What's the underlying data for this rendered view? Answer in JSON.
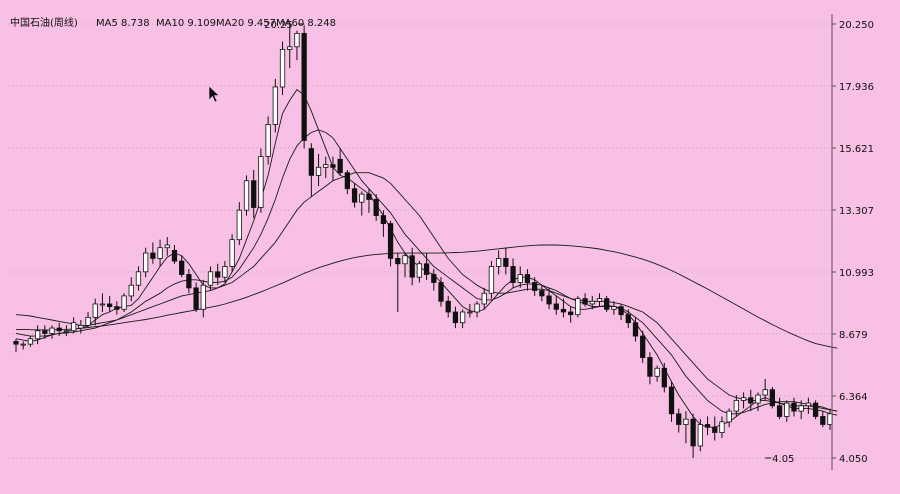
{
  "title": "中国石油(周线)",
  "chart_data": {
    "type": "candlestick",
    "title": "中国石油(周线)",
    "legend": [
      {
        "label": "MA5",
        "value": "8.738"
      },
      {
        "label": "MA10",
        "value": "9.109"
      },
      {
        "label": "MA20",
        "value": "9.457"
      },
      {
        "label": "MA60",
        "value": "8.248"
      }
    ],
    "y_ticks": [
      "20.250",
      "17.936",
      "15.621",
      "13.307",
      "10.993",
      "8.679",
      "6.364",
      "4.050"
    ],
    "ylim": [
      4.05,
      20.25
    ],
    "grid": true,
    "annotations": [
      {
        "label": "20.25",
        "x_index": 40,
        "value": 20.25
      },
      {
        "label": "4.05",
        "x_index": 104,
        "value": 4.05
      }
    ],
    "candles": [
      [
        8.4,
        8.5,
        8.0,
        8.3
      ],
      [
        8.3,
        8.4,
        8.1,
        8.3
      ],
      [
        8.3,
        8.6,
        8.2,
        8.5
      ],
      [
        8.5,
        9.0,
        8.3,
        8.8
      ],
      [
        8.8,
        9.0,
        8.5,
        8.7
      ],
      [
        8.7,
        9.0,
        8.5,
        8.9
      ],
      [
        8.9,
        9.1,
        8.6,
        8.8
      ],
      [
        8.8,
        9.0,
        8.6,
        8.8
      ],
      [
        8.8,
        9.3,
        8.7,
        9.1
      ],
      [
        8.9,
        9.2,
        8.7,
        9.0
      ],
      [
        9.0,
        9.5,
        8.9,
        9.3
      ],
      [
        9.3,
        10.0,
        9.0,
        9.8
      ],
      [
        9.8,
        10.2,
        9.5,
        9.8
      ],
      [
        9.8,
        10.1,
        9.5,
        9.7
      ],
      [
        9.7,
        9.9,
        9.4,
        9.6
      ],
      [
        9.6,
        10.2,
        9.5,
        10.1
      ],
      [
        10.1,
        10.8,
        9.9,
        10.5
      ],
      [
        10.5,
        11.2,
        10.3,
        11.0
      ],
      [
        11.0,
        11.9,
        10.8,
        11.7
      ],
      [
        11.7,
        12.1,
        11.3,
        11.5
      ],
      [
        11.5,
        12.2,
        11.2,
        11.9
      ],
      [
        11.9,
        12.3,
        11.6,
        12.0
      ],
      [
        11.8,
        12.0,
        11.3,
        11.4
      ],
      [
        11.4,
        11.6,
        10.8,
        10.9
      ],
      [
        10.9,
        11.1,
        10.2,
        10.4
      ],
      [
        10.4,
        10.6,
        9.5,
        9.6
      ],
      [
        9.6,
        10.7,
        9.3,
        10.5
      ],
      [
        10.5,
        11.2,
        10.3,
        11.0
      ],
      [
        11.0,
        11.3,
        10.5,
        10.8
      ],
      [
        10.8,
        11.4,
        10.6,
        11.2
      ],
      [
        11.2,
        12.4,
        11.0,
        12.2
      ],
      [
        12.2,
        13.6,
        12.0,
        13.3
      ],
      [
        13.3,
        14.6,
        13.1,
        14.4
      ],
      [
        14.4,
        14.8,
        13.0,
        13.4
      ],
      [
        13.4,
        15.6,
        13.2,
        15.3
      ],
      [
        15.3,
        16.8,
        15.0,
        16.5
      ],
      [
        16.5,
        18.2,
        16.2,
        17.9
      ],
      [
        17.9,
        19.6,
        17.6,
        19.3
      ],
      [
        19.3,
        20.25,
        18.6,
        19.4
      ],
      [
        19.4,
        20.0,
        18.9,
        19.9
      ],
      [
        19.9,
        20.2,
        15.6,
        15.9
      ],
      [
        15.6,
        15.8,
        13.8,
        14.6
      ],
      [
        14.6,
        15.4,
        14.2,
        14.9
      ],
      [
        14.9,
        15.3,
        14.5,
        15.0
      ],
      [
        15.0,
        15.3,
        14.4,
        14.9
      ],
      [
        15.2,
        15.6,
        14.6,
        14.7
      ],
      [
        14.7,
        14.8,
        13.9,
        14.1
      ],
      [
        14.1,
        14.3,
        13.4,
        13.6
      ],
      [
        13.6,
        14.0,
        13.1,
        13.9
      ],
      [
        13.9,
        14.1,
        13.2,
        13.7
      ],
      [
        13.7,
        13.9,
        12.9,
        13.1
      ],
      [
        13.1,
        13.3,
        12.3,
        12.8
      ],
      [
        12.8,
        12.9,
        11.2,
        11.5
      ],
      [
        11.5,
        11.7,
        9.5,
        11.3
      ],
      [
        11.3,
        11.7,
        10.8,
        11.6
      ],
      [
        11.6,
        11.9,
        10.5,
        10.8
      ],
      [
        10.8,
        11.4,
        10.6,
        11.3
      ],
      [
        11.3,
        11.7,
        10.7,
        10.9
      ],
      [
        10.9,
        11.1,
        10.3,
        10.6
      ],
      [
        10.6,
        10.8,
        9.7,
        9.9
      ],
      [
        9.9,
        10.1,
        9.3,
        9.5
      ],
      [
        9.5,
        9.7,
        8.9,
        9.1
      ],
      [
        9.1,
        9.6,
        8.9,
        9.5
      ],
      [
        9.5,
        9.8,
        9.3,
        9.5
      ],
      [
        9.5,
        9.9,
        9.3,
        9.8
      ],
      [
        9.8,
        10.4,
        9.6,
        10.2
      ],
      [
        10.2,
        11.4,
        10.0,
        11.2
      ],
      [
        11.2,
        11.8,
        10.9,
        11.5
      ],
      [
        11.5,
        11.9,
        10.9,
        11.2
      ],
      [
        11.2,
        11.5,
        10.4,
        10.6
      ],
      [
        10.6,
        11.2,
        10.4,
        10.9
      ],
      [
        10.9,
        11.1,
        10.3,
        10.6
      ],
      [
        10.6,
        10.8,
        10.1,
        10.3
      ],
      [
        10.3,
        10.5,
        9.9,
        10.1
      ],
      [
        10.1,
        10.4,
        9.6,
        9.8
      ],
      [
        9.8,
        10.1,
        9.4,
        9.6
      ],
      [
        9.6,
        10.0,
        9.3,
        9.5
      ],
      [
        9.5,
        9.7,
        9.1,
        9.4
      ],
      [
        9.4,
        10.1,
        9.3,
        10.0
      ],
      [
        10.0,
        10.2,
        9.7,
        9.8
      ],
      [
        9.8,
        10.1,
        9.6,
        9.9
      ],
      [
        9.9,
        10.2,
        9.7,
        10.0
      ],
      [
        10.0,
        10.1,
        9.5,
        9.6
      ],
      [
        9.6,
        9.9,
        9.4,
        9.7
      ],
      [
        9.7,
        9.8,
        9.2,
        9.4
      ],
      [
        9.4,
        9.6,
        8.9,
        9.1
      ],
      [
        9.1,
        9.3,
        8.4,
        8.6
      ],
      [
        8.6,
        8.8,
        7.6,
        7.8
      ],
      [
        7.8,
        8.0,
        6.8,
        7.1
      ],
      [
        7.1,
        7.5,
        6.9,
        7.4
      ],
      [
        7.4,
        7.6,
        6.5,
        6.7
      ],
      [
        6.7,
        6.9,
        5.4,
        5.7
      ],
      [
        5.7,
        5.9,
        5.0,
        5.3
      ],
      [
        5.3,
        5.8,
        4.6,
        5.5
      ],
      [
        5.5,
        5.7,
        4.05,
        4.5
      ],
      [
        4.5,
        5.5,
        4.3,
        5.3
      ],
      [
        5.3,
        5.6,
        4.9,
        5.2
      ],
      [
        5.2,
        5.6,
        4.7,
        5.0
      ],
      [
        5.0,
        5.6,
        4.8,
        5.4
      ],
      [
        5.4,
        5.9,
        5.2,
        5.8
      ],
      [
        5.8,
        6.4,
        5.6,
        6.2
      ],
      [
        6.2,
        6.5,
        5.9,
        6.3
      ],
      [
        6.3,
        6.6,
        5.8,
        6.1
      ],
      [
        6.1,
        6.5,
        5.8,
        6.4
      ],
      [
        6.4,
        7.0,
        6.2,
        6.6
      ],
      [
        6.6,
        6.7,
        5.9,
        6.0
      ],
      [
        6.0,
        6.3,
        5.5,
        5.6
      ],
      [
        5.6,
        6.2,
        5.4,
        6.1
      ],
      [
        6.1,
        6.3,
        5.6,
        5.8
      ],
      [
        5.8,
        6.2,
        5.5,
        6.0
      ],
      [
        6.0,
        6.3,
        5.7,
        6.1
      ],
      [
        6.1,
        6.2,
        5.5,
        5.6
      ],
      [
        5.6,
        5.8,
        5.2,
        5.3
      ],
      [
        5.3,
        5.9,
        5.1,
        5.7
      ]
    ],
    "series": [
      {
        "name": "MA5",
        "label_value": "8.738",
        "values": [
          8.5,
          8.45,
          8.4,
          8.45,
          8.55,
          8.65,
          8.7,
          8.75,
          8.85,
          8.9,
          8.98,
          9.2,
          9.4,
          9.5,
          9.65,
          9.7,
          9.75,
          10.0,
          10.4,
          10.8,
          11.2,
          11.55,
          11.7,
          11.6,
          11.3,
          10.9,
          10.5,
          10.4,
          10.4,
          10.55,
          11.0,
          11.5,
          12.2,
          12.9,
          13.7,
          14.6,
          15.8,
          16.9,
          17.4,
          17.8,
          17.6,
          17.0,
          16.3,
          15.6,
          14.9,
          14.6,
          14.5,
          14.3,
          14.1,
          13.9,
          13.5,
          13.1,
          12.6,
          12.1,
          11.7,
          11.4,
          11.2,
          11.0,
          10.9,
          10.6,
          10.3,
          10.0,
          9.7,
          9.55,
          9.5,
          9.6,
          9.9,
          10.2,
          10.5,
          10.7,
          10.8,
          10.8,
          10.7,
          10.5,
          10.3,
          10.1,
          9.9,
          9.7,
          9.6,
          9.6,
          9.65,
          9.7,
          9.75,
          9.7,
          9.6,
          9.4,
          9.1,
          8.7,
          8.3,
          7.9,
          7.4,
          6.9,
          6.4,
          6.0,
          5.6,
          5.3,
          5.2,
          5.2,
          5.3,
          5.4,
          5.6,
          5.8,
          6.0,
          6.2,
          6.3,
          6.2,
          6.1,
          6.0,
          5.9,
          5.9,
          5.9,
          5.85,
          5.8,
          5.7,
          5.65
        ]
      },
      {
        "name": "MA10",
        "label_value": "9.109",
        "values": [
          8.7,
          8.65,
          8.6,
          8.6,
          8.6,
          8.65,
          8.7,
          8.72,
          8.75,
          8.8,
          8.85,
          8.9,
          9.0,
          9.1,
          9.2,
          9.35,
          9.5,
          9.7,
          9.9,
          10.05,
          10.2,
          10.4,
          10.55,
          10.65,
          10.7,
          10.7,
          10.65,
          10.6,
          10.6,
          10.65,
          10.8,
          11.1,
          11.5,
          11.9,
          12.4,
          13.0,
          13.7,
          14.5,
          15.2,
          15.7,
          16.0,
          16.2,
          16.3,
          16.2,
          16.0,
          15.6,
          15.2,
          14.8,
          14.4,
          14.1,
          13.8,
          13.5,
          13.2,
          12.8,
          12.4,
          12.1,
          11.8,
          11.5,
          11.2,
          11.0,
          10.8,
          10.6,
          10.4,
          10.2,
          10.0,
          9.95,
          9.95,
          10.05,
          10.2,
          10.4,
          10.5,
          10.55,
          10.55,
          10.5,
          10.4,
          10.3,
          10.15,
          10.0,
          9.9,
          9.8,
          9.7,
          9.7,
          9.7,
          9.7,
          9.65,
          9.5,
          9.3,
          9.1,
          8.8,
          8.5,
          8.2,
          7.9,
          7.5,
          7.1,
          6.8,
          6.5,
          6.2,
          6.0,
          5.8,
          5.7,
          5.7,
          5.75,
          5.85,
          5.95,
          6.05,
          6.1,
          6.15,
          6.15,
          6.15,
          6.1,
          6.05,
          6.0,
          5.95,
          5.85,
          5.8
        ]
      },
      {
        "name": "MA20",
        "label_value": "9.457",
        "values": [
          9.4,
          9.38,
          9.35,
          9.3,
          9.25,
          9.2,
          9.15,
          9.1,
          9.05,
          9.0,
          9.0,
          9.05,
          9.1,
          9.15,
          9.2,
          9.3,
          9.4,
          9.5,
          9.6,
          9.7,
          9.8,
          9.9,
          10.0,
          10.1,
          10.15,
          10.2,
          10.25,
          10.3,
          10.4,
          10.5,
          10.6,
          10.8,
          11.0,
          11.2,
          11.5,
          11.8,
          12.1,
          12.5,
          12.9,
          13.3,
          13.6,
          13.8,
          14.0,
          14.2,
          14.4,
          14.5,
          14.6,
          14.7,
          14.7,
          14.7,
          14.6,
          14.5,
          14.3,
          14.0,
          13.7,
          13.4,
          13.1,
          12.7,
          12.3,
          11.9,
          11.5,
          11.2,
          10.9,
          10.7,
          10.5,
          10.35,
          10.25,
          10.2,
          10.2,
          10.25,
          10.3,
          10.35,
          10.35,
          10.35,
          10.3,
          10.2,
          10.1,
          10.0,
          9.95,
          9.9,
          9.9,
          9.9,
          9.9,
          9.85,
          9.8,
          9.7,
          9.6,
          9.5,
          9.3,
          9.1,
          8.8,
          8.5,
          8.2,
          7.9,
          7.6,
          7.3,
          7.0,
          6.8,
          6.6,
          6.4,
          6.3,
          6.25,
          6.2,
          6.2,
          6.2,
          6.15,
          6.1,
          6.05,
          6.0,
          6.0,
          6.0,
          5.95,
          5.9,
          5.85,
          5.8
        ]
      },
      {
        "name": "MA60",
        "label_value": "8.248",
        "values": [
          8.85,
          8.85,
          8.84,
          8.83,
          8.83,
          8.83,
          8.84,
          8.85,
          8.87,
          8.89,
          8.92,
          8.95,
          8.98,
          9.02,
          9.06,
          9.1,
          9.14,
          9.18,
          9.22,
          9.27,
          9.32,
          9.38,
          9.43,
          9.48,
          9.53,
          9.58,
          9.63,
          9.68,
          9.73,
          9.8,
          9.88,
          9.96,
          10.05,
          10.15,
          10.25,
          10.36,
          10.47,
          10.58,
          10.7,
          10.82,
          10.94,
          11.05,
          11.15,
          11.24,
          11.32,
          11.4,
          11.47,
          11.53,
          11.58,
          11.62,
          11.65,
          11.67,
          11.69,
          11.7,
          11.7,
          11.7,
          11.7,
          11.7,
          11.7,
          11.7,
          11.71,
          11.72,
          11.73,
          11.75,
          11.77,
          11.8,
          11.83,
          11.86,
          11.89,
          11.92,
          11.95,
          11.97,
          11.99,
          12.0,
          12.0,
          12.0,
          11.99,
          11.97,
          11.95,
          11.92,
          11.89,
          11.85,
          11.8,
          11.75,
          11.69,
          11.62,
          11.55,
          11.47,
          11.38,
          11.28,
          11.17,
          11.05,
          10.92,
          10.78,
          10.64,
          10.5,
          10.36,
          10.21,
          10.06,
          9.91,
          9.76,
          9.61,
          9.46,
          9.31,
          9.17,
          9.03,
          8.9,
          8.77,
          8.65,
          8.53,
          8.42,
          8.32,
          8.26,
          8.2,
          8.15
        ]
      }
    ]
  }
}
